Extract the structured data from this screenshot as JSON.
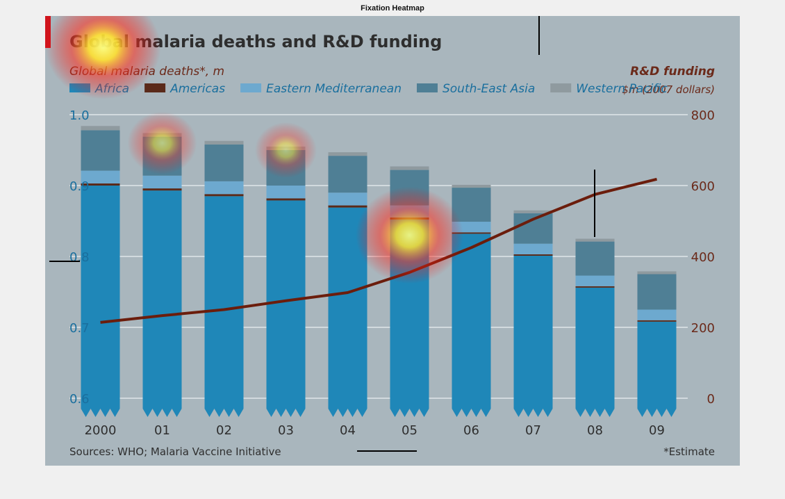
{
  "figure_title": "Fixation Heatmap",
  "chart_data": {
    "type": "bar",
    "title": "Global malaria deaths and R&D funding",
    "left_axis_label": "Global malaria deaths*, m",
    "right_axis_label": "R&D funding",
    "right_axis_sublabel": "$m (2007 dollars)",
    "categories": [
      "2000",
      "01",
      "02",
      "03",
      "04",
      "05",
      "06",
      "07",
      "08",
      "09"
    ],
    "stacked": true,
    "ylim_left": [
      0.6,
      1.0
    ],
    "ylim_right": [
      0,
      800
    ],
    "left_ticks": [
      "0.6",
      "0.7",
      "0.8",
      "0.9",
      "1.0"
    ],
    "right_ticks": [
      "0",
      "200",
      "400",
      "600",
      "800"
    ],
    "legend_placement": "top",
    "grid": true,
    "series": [
      {
        "name": "Africa",
        "color": "#1f87b8",
        "values": [
          0.9,
          0.893,
          0.885,
          0.879,
          0.869,
          0.852,
          0.832,
          0.801,
          0.756,
          0.708
        ]
      },
      {
        "name": "Americas",
        "color": "#5a2a1a",
        "values": [
          0.003,
          0.003,
          0.003,
          0.003,
          0.003,
          0.003,
          0.002,
          0.002,
          0.002,
          0.002
        ]
      },
      {
        "name": "Eastern Mediterranean",
        "color": "#6da9cf",
        "values": [
          0.018,
          0.018,
          0.018,
          0.018,
          0.018,
          0.017,
          0.015,
          0.015,
          0.015,
          0.015
        ]
      },
      {
        "name": "South-East Asia",
        "color": "#4f7f95",
        "values": [
          0.057,
          0.055,
          0.052,
          0.05,
          0.052,
          0.05,
          0.048,
          0.043,
          0.048,
          0.05
        ]
      },
      {
        "name": "Western Pacific",
        "color": "#8f9a9f",
        "values": [
          0.006,
          0.005,
          0.005,
          0.005,
          0.005,
          0.005,
          0.004,
          0.004,
          0.004,
          0.004
        ]
      }
    ],
    "line_series": {
      "name": "R&D funding",
      "axis": "right",
      "color": "#6b1d0c",
      "values": [
        214,
        233,
        250,
        275,
        298,
        355,
        425,
        505,
        575,
        618
      ]
    },
    "source": "Sources: WHO; Malaria Vaccine Initiative",
    "footnote": "*Estimate",
    "heatmap_fixations": [
      {
        "category": "2000",
        "y_left": 1.0,
        "intensity": 1.0
      },
      {
        "category": "01",
        "y_left": 0.96,
        "intensity": 0.4
      },
      {
        "category": "03",
        "y_left": 0.95,
        "intensity": 0.3
      },
      {
        "category": "05",
        "y_left": 0.83,
        "intensity": 0.9
      }
    ]
  }
}
